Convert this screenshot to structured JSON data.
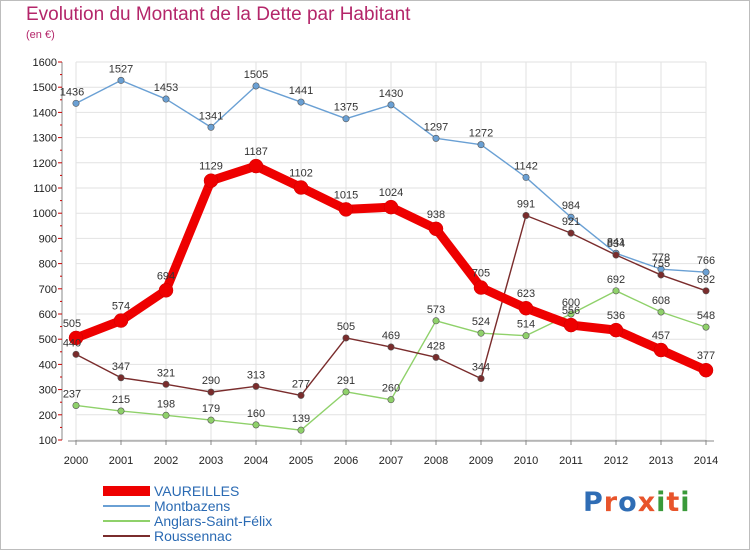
{
  "title": "Evolution du Montant de la Dette par Habitant",
  "subtitle": "(en €)",
  "logo": {
    "text": "Proxiti",
    "colors": [
      "#2f6db5",
      "#e8542b",
      "#2f6db5",
      "#e8542b",
      "#3a9a3a",
      "#e8542b",
      "#3a9a3a"
    ]
  },
  "chart_data": {
    "type": "line",
    "title": "Evolution du Montant de la Dette par Habitant",
    "ylabel": "(en €)",
    "xlabel": "",
    "x": [
      2000,
      2001,
      2002,
      2003,
      2004,
      2005,
      2006,
      2007,
      2008,
      2009,
      2010,
      2011,
      2012,
      2013,
      2014
    ],
    "ylim": [
      100,
      1600
    ],
    "yticks": [
      100,
      200,
      300,
      400,
      500,
      600,
      700,
      800,
      900,
      1000,
      1100,
      1200,
      1300,
      1400,
      1500,
      1600
    ],
    "grid": true,
    "legend_position": "bottom-left",
    "series": [
      {
        "name": "VAUREILLES",
        "color": "#ee0000",
        "emphasis": true,
        "values": [
          505,
          574,
          694,
          1129,
          1187,
          1102,
          1015,
          1024,
          938,
          705,
          623,
          556,
          536,
          457,
          377
        ]
      },
      {
        "name": "Montbazens",
        "color": "#6aa0d4",
        "values": [
          1436,
          1527,
          1453,
          1341,
          1505,
          1441,
          1375,
          1430,
          1297,
          1272,
          1142,
          984,
          841,
          778,
          766
        ]
      },
      {
        "name": "Anglars-Saint-Félix",
        "color": "#8fd16a",
        "values": [
          237,
          215,
          198,
          179,
          160,
          139,
          291,
          260,
          573,
          524,
          514,
          600,
          692,
          608,
          548
        ]
      },
      {
        "name": "Roussennac",
        "color": "#7a2c2c",
        "values": [
          440,
          347,
          321,
          290,
          313,
          277,
          505,
          469,
          428,
          344,
          991,
          921,
          834,
          755,
          692
        ]
      }
    ]
  }
}
